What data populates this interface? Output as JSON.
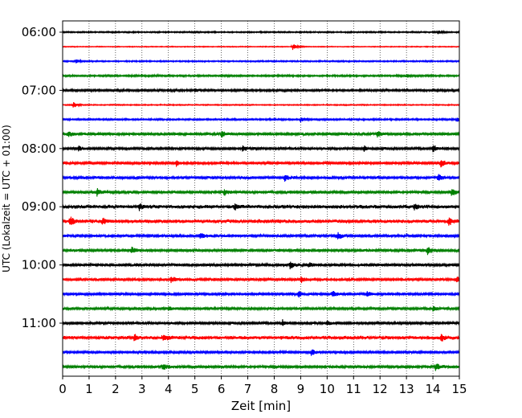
{
  "chart_data": {
    "type": "line",
    "title": "",
    "xlabel": "Zeit  [min]",
    "ylabel": "UTC (Lokalzeit = UTC + 01:00)",
    "xlim": [
      0,
      15
    ],
    "x_ticks": [
      "0",
      "1",
      "2",
      "3",
      "4",
      "5",
      "6",
      "7",
      "8",
      "9",
      "10",
      "11",
      "12",
      "13",
      "14",
      "15"
    ],
    "y_ticks": [
      "06:00",
      "07:00",
      "08:00",
      "09:00",
      "10:00",
      "11:00"
    ],
    "grid": "vertical dotted",
    "legend": "none",
    "color_cycle": [
      "#000000",
      "#ff0000",
      "#0000ff",
      "#008000"
    ],
    "series": [
      {
        "start": "06:00",
        "color": "#000000",
        "amplitude": 1.0,
        "events": [
          {
            "x": 14.2,
            "amp": 2.0
          }
        ]
      },
      {
        "start": "06:15",
        "color": "#ff0000",
        "amplitude": 0.6,
        "events": [
          {
            "x": 8.7,
            "amp": 4.5
          }
        ]
      },
      {
        "start": "06:30",
        "color": "#0000ff",
        "amplitude": 1.0,
        "events": [
          {
            "x": 0.5,
            "amp": 2.5
          }
        ]
      },
      {
        "start": "06:45",
        "color": "#008000",
        "amplitude": 1.3,
        "events": [
          {
            "x": 13.0,
            "amp": 2.0
          }
        ]
      },
      {
        "start": "07:00",
        "color": "#000000",
        "amplitude": 1.5,
        "events": [
          {
            "x": 5.0,
            "amp": 2.5
          }
        ]
      },
      {
        "start": "07:15",
        "color": "#ff0000",
        "amplitude": 0.8,
        "events": [
          {
            "x": 0.4,
            "amp": 4.0
          }
        ]
      },
      {
        "start": "07:30",
        "color": "#0000ff",
        "amplitude": 1.2,
        "events": [
          {
            "x": 9.0,
            "amp": 3.0
          },
          {
            "x": 14.9,
            "amp": 3.0
          }
        ]
      },
      {
        "start": "07:45",
        "color": "#008000",
        "amplitude": 2.0,
        "events": [
          {
            "x": 0.2,
            "amp": 4.0
          },
          {
            "x": 6.0,
            "amp": 3.5
          },
          {
            "x": 11.9,
            "amp": 4.0
          }
        ]
      },
      {
        "start": "08:00",
        "color": "#000000",
        "amplitude": 1.8,
        "events": [
          {
            "x": 0.6,
            "amp": 3.0
          },
          {
            "x": 6.8,
            "amp": 3.5
          },
          {
            "x": 11.4,
            "amp": 3.0
          },
          {
            "x": 14.0,
            "amp": 5.0
          }
        ]
      },
      {
        "start": "08:15",
        "color": "#ff0000",
        "amplitude": 1.8,
        "events": [
          {
            "x": 4.3,
            "amp": 4.0
          },
          {
            "x": 14.3,
            "amp": 5.0
          }
        ]
      },
      {
        "start": "08:30",
        "color": "#0000ff",
        "amplitude": 2.0,
        "events": [
          {
            "x": 8.4,
            "amp": 4.0
          },
          {
            "x": 14.2,
            "amp": 4.0
          }
        ]
      },
      {
        "start": "08:45",
        "color": "#008000",
        "amplitude": 2.0,
        "events": [
          {
            "x": 1.3,
            "amp": 4.0
          },
          {
            "x": 6.1,
            "amp": 4.0
          },
          {
            "x": 14.7,
            "amp": 5.0
          }
        ]
      },
      {
        "start": "09:00",
        "color": "#000000",
        "amplitude": 2.5,
        "events": [
          {
            "x": 2.9,
            "amp": 4.0
          },
          {
            "x": 6.5,
            "amp": 4.0
          },
          {
            "x": 13.3,
            "amp": 3.0
          }
        ]
      },
      {
        "start": "09:15",
        "color": "#ff0000",
        "amplitude": 2.5,
        "events": [
          {
            "x": 0.3,
            "amp": 5.0
          },
          {
            "x": 1.5,
            "amp": 4.0
          },
          {
            "x": 14.6,
            "amp": 4.0
          }
        ]
      },
      {
        "start": "09:30",
        "color": "#0000ff",
        "amplitude": 2.0,
        "events": [
          {
            "x": 5.2,
            "amp": 4.0
          },
          {
            "x": 10.4,
            "amp": 4.5
          }
        ]
      },
      {
        "start": "09:45",
        "color": "#008000",
        "amplitude": 2.0,
        "events": [
          {
            "x": 2.6,
            "amp": 4.0
          },
          {
            "x": 13.8,
            "amp": 5.0
          }
        ]
      },
      {
        "start": "10:00",
        "color": "#000000",
        "amplitude": 2.0,
        "events": [
          {
            "x": 8.6,
            "amp": 4.0
          },
          {
            "x": 9.3,
            "amp": 3.0
          }
        ]
      },
      {
        "start": "10:15",
        "color": "#ff0000",
        "amplitude": 2.0,
        "events": [
          {
            "x": 4.1,
            "amp": 4.0
          },
          {
            "x": 9.0,
            "amp": 4.0
          },
          {
            "x": 14.9,
            "amp": 4.0
          }
        ]
      },
      {
        "start": "10:30",
        "color": "#0000ff",
        "amplitude": 1.8,
        "events": [
          {
            "x": 8.9,
            "amp": 4.0
          },
          {
            "x": 10.2,
            "amp": 4.0
          },
          {
            "x": 11.5,
            "amp": 3.0
          }
        ]
      },
      {
        "start": "10:45",
        "color": "#008000",
        "amplitude": 1.8,
        "events": [
          {
            "x": 4.0,
            "amp": 3.5
          },
          {
            "x": 14.0,
            "amp": 4.0
          }
        ]
      },
      {
        "start": "11:00",
        "color": "#000000",
        "amplitude": 1.8,
        "events": [
          {
            "x": 8.3,
            "amp": 4.0
          },
          {
            "x": 10.0,
            "amp": 3.0
          }
        ]
      },
      {
        "start": "11:15",
        "color": "#ff0000",
        "amplitude": 2.5,
        "events": [
          {
            "x": 2.7,
            "amp": 4.0
          },
          {
            "x": 3.8,
            "amp": 4.0
          },
          {
            "x": 14.3,
            "amp": 4.0
          }
        ]
      },
      {
        "start": "11:30",
        "color": "#0000ff",
        "amplitude": 1.8,
        "events": [
          {
            "x": 9.4,
            "amp": 4.0
          }
        ]
      },
      {
        "start": "11:45",
        "color": "#008000",
        "amplitude": 2.0,
        "events": [
          {
            "x": 3.8,
            "amp": 4.0
          },
          {
            "x": 14.1,
            "amp": 4.0
          }
        ]
      }
    ]
  }
}
